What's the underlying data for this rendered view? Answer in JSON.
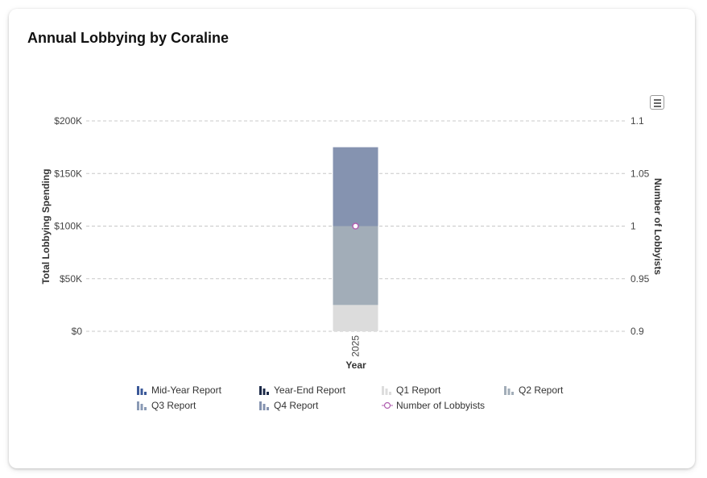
{
  "card": {
    "title": "Annual Lobbying by Coraline"
  },
  "chart_data": {
    "type": "bar",
    "stacked": true,
    "categories": [
      "2025"
    ],
    "series": [
      {
        "name": "Mid-Year Report",
        "type": "bar",
        "color": "#3b5998",
        "values": [
          0
        ]
      },
      {
        "name": "Year-End Report",
        "type": "bar",
        "color": "#1c2a48",
        "values": [
          0
        ]
      },
      {
        "name": "Q1 Report",
        "type": "bar",
        "color": "#dcdcdc",
        "values": [
          25000
        ]
      },
      {
        "name": "Q2 Report",
        "type": "bar",
        "color": "#a2adb8",
        "values": [
          75000
        ]
      },
      {
        "name": "Q3 Report",
        "type": "bar",
        "color": "#8a9ab5",
        "values": [
          0
        ]
      },
      {
        "name": "Q4 Report",
        "type": "bar",
        "color": "#8593b0",
        "values": [
          75000
        ]
      },
      {
        "name": "Number of Lobbyists",
        "type": "line",
        "color": "#b05fb0",
        "axis": "right",
        "values": [
          1
        ]
      }
    ],
    "xlabel": "Year",
    "ylabel": "Total Lobbying Spending",
    "y2label": "Number of Lobbyists",
    "ylim": [
      0,
      200000
    ],
    "y2lim": [
      0.9,
      1.1
    ],
    "yticks": [
      "$0",
      "$50K",
      "$100K",
      "$150K",
      "$200K"
    ],
    "y2ticks": [
      "0.9",
      "0.95",
      "1",
      "1.05",
      "1.1"
    ],
    "grid": true,
    "legend": "bottom"
  }
}
